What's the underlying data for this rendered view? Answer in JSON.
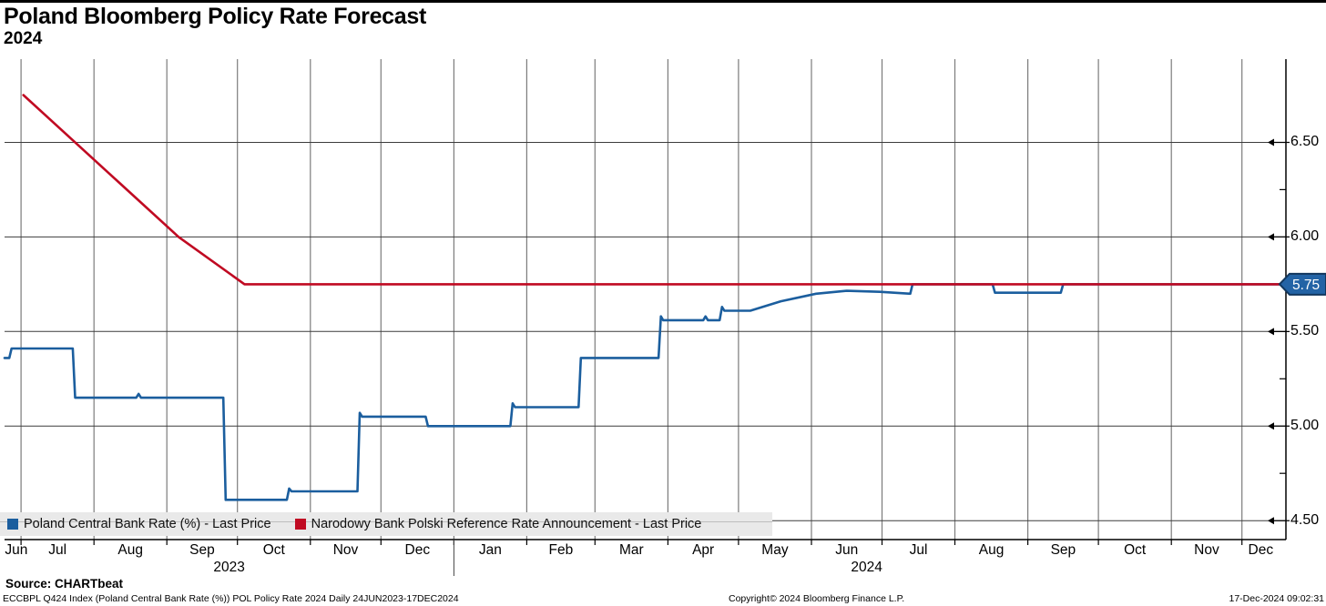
{
  "header": {
    "title": "Poland Bloomberg Policy Rate Forecast",
    "subtitle": "2024"
  },
  "legend": {
    "items": [
      {
        "label": "Poland Central Bank Rate (%) - Last Price",
        "color": "#1b5e9e"
      },
      {
        "label": "Narodowy Bank Polski Reference Rate Announcement - Last Price",
        "color": "#c00a22"
      }
    ]
  },
  "footer": {
    "source": "Source: CHARTbeat",
    "description": "ECCBPL Q424 Index (Poland Central Bank Rate (%)) POL Policy Rate 2024  Daily 24JUN2023-17DEC2024",
    "copyright": "Copyright© 2024 Bloomberg Finance L.P.",
    "timestamp": "17-Dec-2024 09:02:31"
  },
  "chart_data": {
    "type": "line",
    "title": "Poland Bloomberg Policy Rate Forecast",
    "subtitle": "2024",
    "x_axis": {
      "start_date": "24JUN2023",
      "end_date": "17DEC2024",
      "total_days": 542,
      "month_ticks": [
        {
          "label": "Jun",
          "grid_day": null,
          "center_day": 5
        },
        {
          "label": "Jul",
          "grid_day": 7,
          "center_day": 22.5
        },
        {
          "label": "Aug",
          "grid_day": 38,
          "center_day": 53.5
        },
        {
          "label": "Sep",
          "grid_day": 69,
          "center_day": 84
        },
        {
          "label": "Oct",
          "grid_day": 99,
          "center_day": 114.5
        },
        {
          "label": "Nov",
          "grid_day": 130,
          "center_day": 145
        },
        {
          "label": "Dec",
          "grid_day": 160,
          "center_day": 175.5
        },
        {
          "label": "Jan",
          "grid_day": 191,
          "center_day": 206.5
        },
        {
          "label": "Feb",
          "grid_day": 222,
          "center_day": 236.5
        },
        {
          "label": "Mar",
          "grid_day": 251,
          "center_day": 266.5
        },
        {
          "label": "Apr",
          "grid_day": 282,
          "center_day": 297
        },
        {
          "label": "May",
          "grid_day": 312,
          "center_day": 327.5
        },
        {
          "label": "Jun",
          "grid_day": 343,
          "center_day": 358
        },
        {
          "label": "Jul",
          "grid_day": 373,
          "center_day": 388.5
        },
        {
          "label": "Aug",
          "grid_day": 404,
          "center_day": 419.5
        },
        {
          "label": "Sep",
          "grid_day": 435,
          "center_day": 450
        },
        {
          "label": "Oct",
          "grid_day": 465,
          "center_day": 480.5
        },
        {
          "label": "Nov",
          "grid_day": 496,
          "center_day": 511
        },
        {
          "label": "Dec",
          "grid_day": 526,
          "center_day": 534
        }
      ],
      "year_labels": [
        {
          "label": "2023",
          "center_day": 95.5
        },
        {
          "label": "2024",
          "center_day": 366.5
        }
      ],
      "year_separator_day": 191
    },
    "y_axis": {
      "side": "right",
      "range": [
        4.4,
        6.94
      ],
      "major_ticks": [
        {
          "label": "4.50",
          "value": 4.5
        },
        {
          "label": "5.00",
          "value": 5.0
        },
        {
          "label": "5.50",
          "value": 5.5
        },
        {
          "label": "6.00",
          "value": 6.0
        },
        {
          "label": "6.50",
          "value": 6.5
        }
      ],
      "minor_ticks": [
        4.75,
        5.25,
        5.75,
        6.25
      ],
      "last_price_badge": {
        "label": "5.75",
        "value": 5.75,
        "fill": "#2363a5",
        "border": "#12375e",
        "text_color": "#ffffff"
      }
    },
    "grid": {
      "vertical": "monthly",
      "horizontal_values": [
        4.5,
        5.0,
        5.5,
        6.0,
        6.5
      ],
      "vertical_color": "#7b7b7b",
      "horizontal_color": "#3c3c3c"
    },
    "series": [
      {
        "name": "Poland Central Bank Rate (%) - Last Price",
        "color": "#1b5e9e",
        "points": [
          [
            0,
            5.36
          ],
          [
            2,
            5.36
          ],
          [
            3,
            5.41
          ],
          [
            29,
            5.41
          ],
          [
            30,
            5.15
          ],
          [
            56,
            5.15
          ],
          [
            57,
            5.17
          ],
          [
            58,
            5.15
          ],
          [
            93,
            5.15
          ],
          [
            94,
            4.61
          ],
          [
            120,
            4.61
          ],
          [
            121,
            4.67
          ],
          [
            122,
            4.655
          ],
          [
            150,
            4.655
          ],
          [
            151,
            5.07
          ],
          [
            152,
            5.05
          ],
          [
            179,
            5.05
          ],
          [
            180,
            5.0
          ],
          [
            215,
            5.0
          ],
          [
            216,
            5.12
          ],
          [
            217,
            5.1
          ],
          [
            244,
            5.1
          ],
          [
            245,
            5.36
          ],
          [
            278,
            5.36
          ],
          [
            279,
            5.58
          ],
          [
            280,
            5.56
          ],
          [
            297,
            5.56
          ],
          [
            298,
            5.58
          ],
          [
            299,
            5.56
          ],
          [
            304,
            5.56
          ],
          [
            305,
            5.63
          ],
          [
            306,
            5.61
          ],
          [
            317,
            5.61
          ],
          [
            330,
            5.66
          ],
          [
            345,
            5.7
          ],
          [
            358,
            5.715
          ],
          [
            372,
            5.71
          ],
          [
            385,
            5.7
          ],
          [
            386,
            5.75
          ],
          [
            420,
            5.75
          ],
          [
            421,
            5.705
          ],
          [
            449,
            5.705
          ],
          [
            450,
            5.75
          ],
          [
            542,
            5.75
          ]
        ]
      },
      {
        "name": "Narodowy Bank Polski Reference Rate Announcement - Last Price",
        "color": "#c00a22",
        "points": [
          [
            8,
            6.75
          ],
          [
            74,
            6.0
          ],
          [
            102,
            5.75
          ],
          [
            542,
            5.75
          ]
        ]
      }
    ]
  }
}
